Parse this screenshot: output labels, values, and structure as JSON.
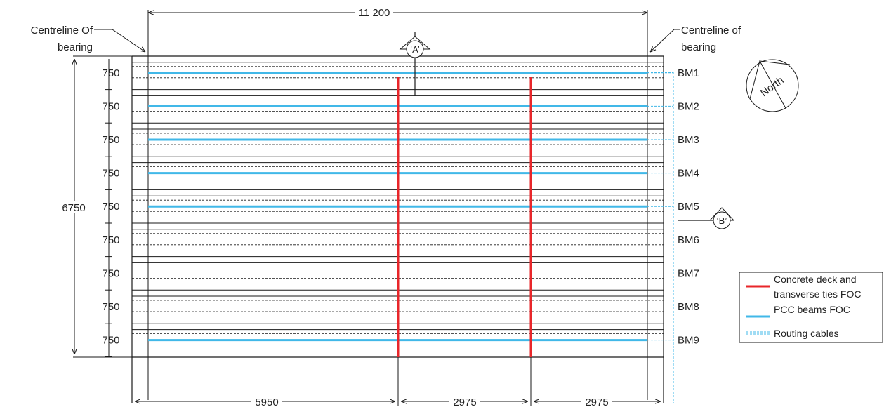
{
  "top_dimension": "11 200",
  "centreline_left": [
    "Centreline Of",
    "bearing"
  ],
  "centreline_right": [
    "Centreline of",
    "bearing"
  ],
  "overall_height": "6750",
  "spacing_label": "750",
  "beams": [
    "BM1",
    "BM2",
    "BM3",
    "BM4",
    "BM5",
    "BM6",
    "BM7",
    "BM8",
    "BM9"
  ],
  "bottom_dimensions": [
    "5950",
    "2975",
    "2975"
  ],
  "section_markers": {
    "a": "‘A’",
    "b": "‘B’"
  },
  "north_label": "North",
  "legend": [
    {
      "label_lines": [
        "Concrete deck and",
        "transverse ties FOC"
      ],
      "color": "#e8262a"
    },
    {
      "label_lines": [
        "PCC beams FOC"
      ],
      "color": "#41b8e8"
    },
    {
      "label_lines": [
        "Routing cables"
      ],
      "color": "#41b8e8"
    }
  ],
  "colors": {
    "ties": "#e8262a",
    "beams": "#41b8e8",
    "lines": "#1a1a1a"
  }
}
